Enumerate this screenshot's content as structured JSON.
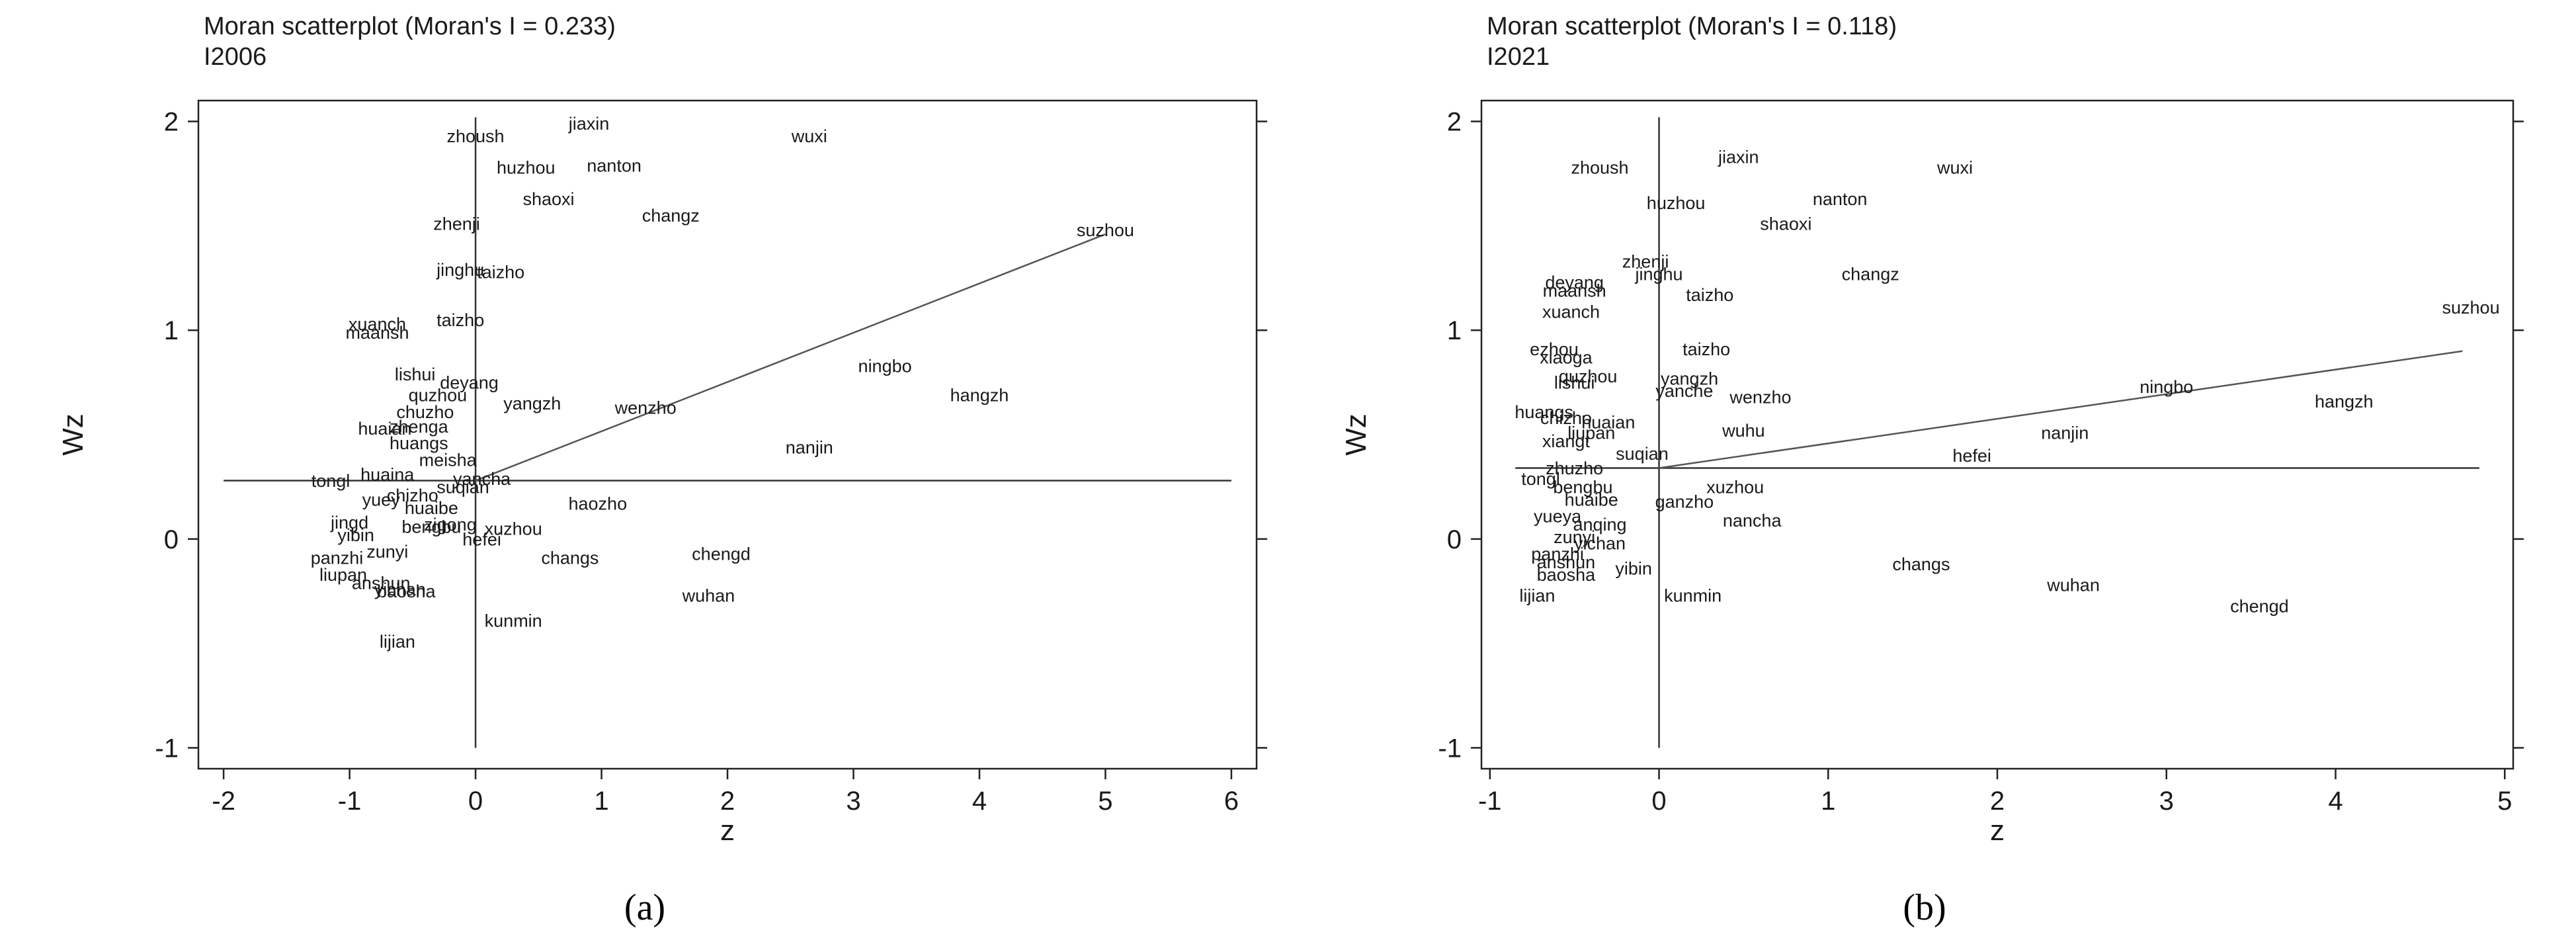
{
  "chart_data": [
    {
      "type": "scatter",
      "title": "Moran scatterplot (Moran's I = 0.233)",
      "subtitle": "I2006",
      "xlabel": "z",
      "ylabel": "Wz",
      "xlim": [
        -2.2,
        6.2
      ],
      "ylim": [
        -1.1,
        2.1
      ],
      "xticks": [
        "-2",
        "-1",
        "0",
        "1",
        "2",
        "3",
        "4",
        "5",
        "6"
      ],
      "yticks": [
        "-1",
        "0",
        "1",
        "2"
      ],
      "caption": "(a)",
      "mean_wz": 0.28,
      "fit_line": {
        "x": [
          0,
          5.0
        ],
        "y": [
          0.28,
          1.46
        ]
      },
      "points": [
        {
          "label": "jiaxin",
          "x": 0.9,
          "y": 1.96
        },
        {
          "label": "zhoush",
          "x": 0.0,
          "y": 1.9
        },
        {
          "label": "wuxi",
          "x": 2.65,
          "y": 1.9
        },
        {
          "label": "huzhou",
          "x": 0.4,
          "y": 1.75
        },
        {
          "label": "nanton",
          "x": 1.1,
          "y": 1.76
        },
        {
          "label": "shaoxi",
          "x": 0.58,
          "y": 1.6
        },
        {
          "label": "changz",
          "x": 1.55,
          "y": 1.52
        },
        {
          "label": "suzhou",
          "x": 5.0,
          "y": 1.45
        },
        {
          "label": "zhenji",
          "x": -0.15,
          "y": 1.48
        },
        {
          "label": "jinghu",
          "x": -0.12,
          "y": 1.26
        },
        {
          "label": "taizho",
          "x": 0.2,
          "y": 1.25
        },
        {
          "label": "taizho",
          "x": -0.12,
          "y": 1.02
        },
        {
          "label": "xuanch",
          "x": -0.78,
          "y": 1.0
        },
        {
          "label": "maansh",
          "x": -0.78,
          "y": 0.96
        },
        {
          "label": "ningbo",
          "x": 3.25,
          "y": 0.8
        },
        {
          "label": "hangzh",
          "x": 4.0,
          "y": 0.66
        },
        {
          "label": "lishui",
          "x": -0.48,
          "y": 0.76
        },
        {
          "label": "deyang",
          "x": -0.05,
          "y": 0.72
        },
        {
          "label": "yangzh",
          "x": 0.45,
          "y": 0.62
        },
        {
          "label": "wenzho",
          "x": 1.35,
          "y": 0.6
        },
        {
          "label": "quzhou",
          "x": -0.3,
          "y": 0.66
        },
        {
          "label": "chuzho",
          "x": -0.4,
          "y": 0.58
        },
        {
          "label": "huaian",
          "x": -0.72,
          "y": 0.5
        },
        {
          "label": "zhenga",
          "x": -0.45,
          "y": 0.51
        },
        {
          "label": "huangs",
          "x": -0.45,
          "y": 0.43
        },
        {
          "label": "meisha",
          "x": -0.22,
          "y": 0.35
        },
        {
          "label": "nanjin",
          "x": 2.65,
          "y": 0.41
        },
        {
          "label": "tongl",
          "x": -1.15,
          "y": 0.25
        },
        {
          "label": "huaina",
          "x": -0.7,
          "y": 0.28
        },
        {
          "label": "yuey",
          "x": -0.75,
          "y": 0.16
        },
        {
          "label": "haozho",
          "x": 0.97,
          "y": 0.14
        },
        {
          "label": "jingd",
          "x": -1.0,
          "y": 0.05
        },
        {
          "label": "yibin",
          "x": -0.95,
          "y": -0.01
        },
        {
          "label": "changs",
          "x": 0.75,
          "y": -0.12
        },
        {
          "label": "chengd",
          "x": 1.95,
          "y": -0.1
        },
        {
          "label": "panzhi",
          "x": -1.1,
          "y": -0.12
        },
        {
          "label": "liupan",
          "x": -1.05,
          "y": -0.2
        },
        {
          "label": "anshun",
          "x": -0.75,
          "y": -0.24
        },
        {
          "label": "baosha",
          "x": -0.55,
          "y": -0.28
        },
        {
          "label": "yichan",
          "x": -0.6,
          "y": -0.27
        },
        {
          "label": "wuhan",
          "x": 1.85,
          "y": -0.3
        },
        {
          "label": "kunmin",
          "x": 0.3,
          "y": -0.42
        },
        {
          "label": "lijian",
          "x": -0.62,
          "y": -0.52
        },
        {
          "label": "zigong",
          "x": -0.2,
          "y": 0.04
        },
        {
          "label": "huaibe",
          "x": -0.35,
          "y": 0.12
        },
        {
          "label": "suqian",
          "x": -0.1,
          "y": 0.22
        },
        {
          "label": "chizho",
          "x": -0.5,
          "y": 0.18
        },
        {
          "label": "xuzhou",
          "x": 0.3,
          "y": 0.02
        },
        {
          "label": "hefei",
          "x": 0.05,
          "y": -0.03
        },
        {
          "label": "zunyi",
          "x": -0.7,
          "y": -0.09
        },
        {
          "label": "yancha",
          "x": 0.05,
          "y": 0.26
        },
        {
          "label": "bengbu",
          "x": -0.35,
          "y": 0.03
        }
      ]
    },
    {
      "type": "scatter",
      "title": "Moran scatterplot (Moran's I = 0.118)",
      "subtitle": "I2021",
      "xlabel": "z",
      "ylabel": "Wz",
      "xlim": [
        -1.05,
        5.05
      ],
      "ylim": [
        -1.1,
        2.1
      ],
      "xticks": [
        "-1",
        "0",
        "1",
        "2",
        "3",
        "4",
        "5"
      ],
      "yticks": [
        "-1",
        "0",
        "1",
        "2"
      ],
      "caption": "(b)",
      "mean_wz": 0.34,
      "fit_line": {
        "x": [
          0,
          4.75
        ],
        "y": [
          0.34,
          0.9
        ]
      },
      "points": [
        {
          "label": "jiaxin",
          "x": 0.47,
          "y": 1.8
        },
        {
          "label": "zhoush",
          "x": -0.35,
          "y": 1.75
        },
        {
          "label": "wuxi",
          "x": 1.75,
          "y": 1.75
        },
        {
          "label": "nanton",
          "x": 1.07,
          "y": 1.6
        },
        {
          "label": "huzhou",
          "x": 0.1,
          "y": 1.58
        },
        {
          "label": "shaoxi",
          "x": 0.75,
          "y": 1.48
        },
        {
          "label": "zhenji",
          "x": -0.08,
          "y": 1.3
        },
        {
          "label": "jinghu",
          "x": 0.0,
          "y": 1.24
        },
        {
          "label": "changz",
          "x": 1.25,
          "y": 1.24
        },
        {
          "label": "deyang",
          "x": -0.5,
          "y": 1.2
        },
        {
          "label": "maansh",
          "x": -0.5,
          "y": 1.16
        },
        {
          "label": "taizho",
          "x": 0.3,
          "y": 1.14
        },
        {
          "label": "suzhou",
          "x": 4.8,
          "y": 1.08
        },
        {
          "label": "xuanch",
          "x": -0.52,
          "y": 1.06
        },
        {
          "label": "ezhou",
          "x": -0.62,
          "y": 0.88
        },
        {
          "label": "taizho",
          "x": 0.28,
          "y": 0.88
        },
        {
          "label": "xiaoga",
          "x": -0.55,
          "y": 0.84
        },
        {
          "label": "quzhou",
          "x": -0.42,
          "y": 0.75
        },
        {
          "label": "lishui",
          "x": -0.5,
          "y": 0.72
        },
        {
          "label": "yangzh",
          "x": 0.18,
          "y": 0.74
        },
        {
          "label": "yanche",
          "x": 0.15,
          "y": 0.68
        },
        {
          "label": "wenzho",
          "x": 0.6,
          "y": 0.65
        },
        {
          "label": "ningbo",
          "x": 3.0,
          "y": 0.7
        },
        {
          "label": "hangzh",
          "x": 4.05,
          "y": 0.63
        },
        {
          "label": "huangs",
          "x": -0.68,
          "y": 0.58
        },
        {
          "label": "chizho",
          "x": -0.55,
          "y": 0.55
        },
        {
          "label": "huaian",
          "x": -0.3,
          "y": 0.53
        },
        {
          "label": "liupan",
          "x": -0.4,
          "y": 0.48
        },
        {
          "label": "wuhu",
          "x": 0.5,
          "y": 0.49
        },
        {
          "label": "nanjin",
          "x": 2.4,
          "y": 0.48
        },
        {
          "label": "xiangt",
          "x": -0.55,
          "y": 0.44
        },
        {
          "label": "suqian",
          "x": -0.1,
          "y": 0.38
        },
        {
          "label": "hefei",
          "x": 1.85,
          "y": 0.37
        },
        {
          "label": "zhuzho",
          "x": -0.5,
          "y": 0.31
        },
        {
          "label": "tongl",
          "x": -0.7,
          "y": 0.26
        },
        {
          "label": "bengbu",
          "x": -0.45,
          "y": 0.22
        },
        {
          "label": "xuzhou",
          "x": 0.45,
          "y": 0.22
        },
        {
          "label": "ganzho",
          "x": 0.15,
          "y": 0.15
        },
        {
          "label": "huaibe",
          "x": -0.4,
          "y": 0.16
        },
        {
          "label": "nancha",
          "x": 0.55,
          "y": 0.06
        },
        {
          "label": "yueya",
          "x": -0.6,
          "y": 0.08
        },
        {
          "label": "anqing",
          "x": -0.35,
          "y": 0.04
        },
        {
          "label": "zunyi",
          "x": -0.5,
          "y": -0.02
        },
        {
          "label": "yichan",
          "x": -0.35,
          "y": -0.05
        },
        {
          "label": "panzhi",
          "x": -0.6,
          "y": -0.1
        },
        {
          "label": "anshun",
          "x": -0.55,
          "y": -0.14
        },
        {
          "label": "yibin",
          "x": -0.15,
          "y": -0.17
        },
        {
          "label": "baosha",
          "x": -0.55,
          "y": -0.2
        },
        {
          "label": "changs",
          "x": 1.55,
          "y": -0.15
        },
        {
          "label": "wuhan",
          "x": 2.45,
          "y": -0.25
        },
        {
          "label": "chengd",
          "x": 3.55,
          "y": -0.35
        },
        {
          "label": "lijian",
          "x": -0.72,
          "y": -0.3
        },
        {
          "label": "kunmin",
          "x": 0.2,
          "y": -0.3
        }
      ]
    }
  ]
}
